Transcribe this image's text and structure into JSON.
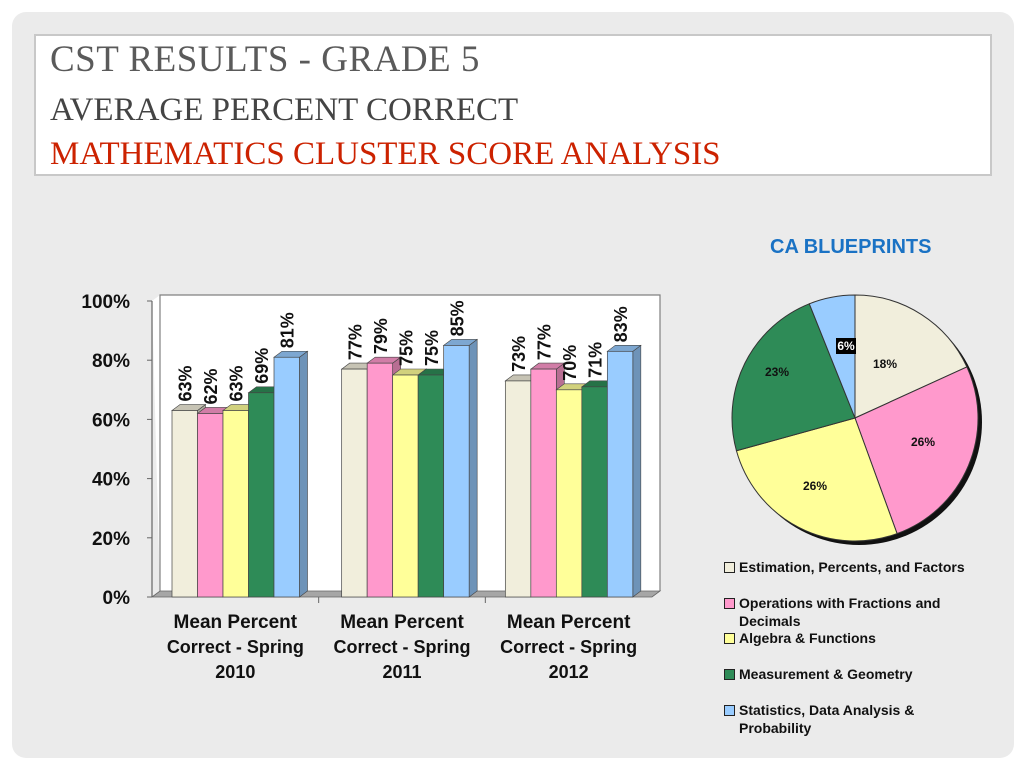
{
  "title": {
    "line1": "CST RESULTS - GRADE 5",
    "line2": "AVERAGE PERCENT CORRECT",
    "line3": "MATHEMATICS CLUSTER SCORE ANALYSIS"
  },
  "colors": {
    "title1": "#5a5a5a",
    "title2": "#444444",
    "title3": "#cc2200",
    "pie_title": "#1a72c4"
  },
  "chart_data": [
    {
      "type": "bar",
      "title": "",
      "xlabel": "",
      "ylabel": "",
      "ylim": [
        0,
        100
      ],
      "y_ticks": [
        "0%",
        "20%",
        "40%",
        "60%",
        "80%",
        "100%"
      ],
      "categories": [
        "Mean Percent Correct  - Spring 2010",
        "Mean Percent Correct  - Spring 2011",
        "Mean Percent Correct  - Spring 2012"
      ],
      "series": [
        {
          "name": "Estimation, Percents, and Factors",
          "color": "#f1eedc",
          "values": [
            63,
            77,
            73
          ],
          "labels": [
            "63%",
            "77%",
            "73%"
          ]
        },
        {
          "name": "Operations with Fractions and Decimals",
          "color": "#ff99cc",
          "values": [
            62,
            79,
            77
          ],
          "labels": [
            "62%",
            "79%",
            "77%"
          ]
        },
        {
          "name": "Algebra & Functions",
          "color": "#ffff99",
          "values": [
            63,
            75,
            70
          ],
          "labels": [
            "63%",
            "75%",
            "70%"
          ]
        },
        {
          "name": "Measurement & Geometry",
          "color": "#2e8b57",
          "values": [
            69,
            75,
            71
          ],
          "labels": [
            "69%",
            "75%",
            "71%"
          ]
        },
        {
          "name": "Statistics, Data Analysis & Probability",
          "color": "#99ccff",
          "values": [
            81,
            85,
            83
          ],
          "labels": [
            "81%",
            "85%",
            "83%"
          ]
        }
      ],
      "grid": false,
      "three_d": true
    },
    {
      "type": "pie",
      "title": "CA BLUEPRINTS",
      "slices": [
        {
          "name": "Estimation, Percents, and Factors",
          "value": 18,
          "label": "18%",
          "color": "#f1eedc"
        },
        {
          "name": "Operations with Fractions and Decimals",
          "value": 26,
          "label": "26%",
          "color": "#ff99cc"
        },
        {
          "name": "Algebra & Functions",
          "value": 26,
          "label": "26%",
          "color": "#ffff99"
        },
        {
          "name": "Measurement & Geometry",
          "value": 23,
          "label": "23%",
          "color": "#2e8b57"
        },
        {
          "name": "Statistics, Data Analysis & Probability",
          "value": 6,
          "label": "6%",
          "color": "#99ccff"
        }
      ],
      "legend_placement": "bottom"
    }
  ],
  "legend": {
    "items": [
      {
        "label": "Estimation, Percents, and Factors",
        "color": "#f1eedc"
      },
      {
        "label": "Operations with Fractions and Decimals",
        "color": "#ff99cc"
      },
      {
        "label": "Algebra & Functions",
        "color": "#ffff99"
      },
      {
        "label": "Measurement & Geometry",
        "color": "#2e8b57"
      },
      {
        "label": "Statistics, Data Analysis & Probability",
        "color": "#99ccff"
      }
    ]
  }
}
